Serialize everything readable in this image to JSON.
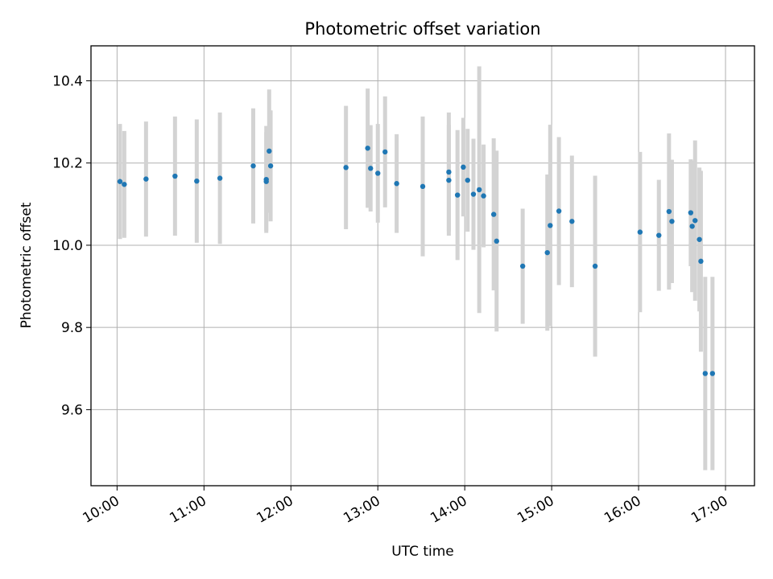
{
  "chart_data": {
    "type": "scatter",
    "title": "Photometric offset variation",
    "xlabel": "UTC time",
    "ylabel": "Photometric offset",
    "xlim": [
      "09:42",
      "17:20"
    ],
    "ylim": [
      9.415,
      10.485
    ],
    "grid": true,
    "x_ticks": [
      "10:00",
      "11:00",
      "12:00",
      "13:00",
      "14:00",
      "15:00",
      "16:00",
      "17:00"
    ],
    "y_ticks": [
      9.6,
      9.8,
      10.0,
      10.2,
      10.4
    ],
    "y_tick_labels": [
      "9.6",
      "9.8",
      "10.0",
      "10.2",
      "10.4"
    ],
    "colors": {
      "points": "#1f77b4",
      "errorbars": "#d3d3d3",
      "grid": "#b0b0b0"
    },
    "series": [
      {
        "x": [
          "10:02",
          "10:05",
          "10:20",
          "10:40",
          "10:55",
          "11:11",
          "11:34",
          "11:43",
          "11:43",
          "11:45",
          "11:46",
          "12:38",
          "12:53",
          "12:55",
          "13:00",
          "13:05",
          "13:13",
          "13:31",
          "13:49",
          "13:49",
          "13:55",
          "13:59",
          "14:02",
          "14:06",
          "14:10",
          "14:13",
          "14:20",
          "14:22",
          "14:40",
          "14:57",
          "14:59",
          "15:05",
          "15:14",
          "15:30",
          "16:01",
          "16:14",
          "16:21",
          "16:23",
          "16:36",
          "16:37",
          "16:39",
          "16:42",
          "16:43",
          "16:46",
          "16:51"
        ],
        "y": [
          10.155,
          10.148,
          10.161,
          10.168,
          10.156,
          10.163,
          10.193,
          10.16,
          10.155,
          10.229,
          10.193,
          10.189,
          10.236,
          10.187,
          10.175,
          10.227,
          10.15,
          10.143,
          10.178,
          10.158,
          10.122,
          10.19,
          10.158,
          10.124,
          10.135,
          10.12,
          10.075,
          10.01,
          9.949,
          9.982,
          10.048,
          10.083,
          10.058,
          9.949,
          10.032,
          10.024,
          10.082,
          10.058,
          10.079,
          10.046,
          10.06,
          10.014,
          9.961,
          9.688,
          9.688
        ],
        "yerr": [
          0.14,
          0.13,
          0.14,
          0.145,
          0.15,
          0.16,
          0.14,
          0.13,
          0.12,
          0.15,
          0.135,
          0.15,
          0.145,
          0.105,
          0.12,
          0.135,
          0.12,
          0.17,
          0.145,
          0.135,
          0.158,
          0.12,
          0.125,
          0.135,
          0.3,
          0.125,
          0.185,
          0.22,
          0.14,
          0.19,
          0.245,
          0.18,
          0.16,
          0.22,
          0.195,
          0.135,
          0.19,
          0.15,
          0.13,
          0.16,
          0.195,
          0.175,
          0.22,
          0.235,
          0.235
        ]
      }
    ]
  }
}
